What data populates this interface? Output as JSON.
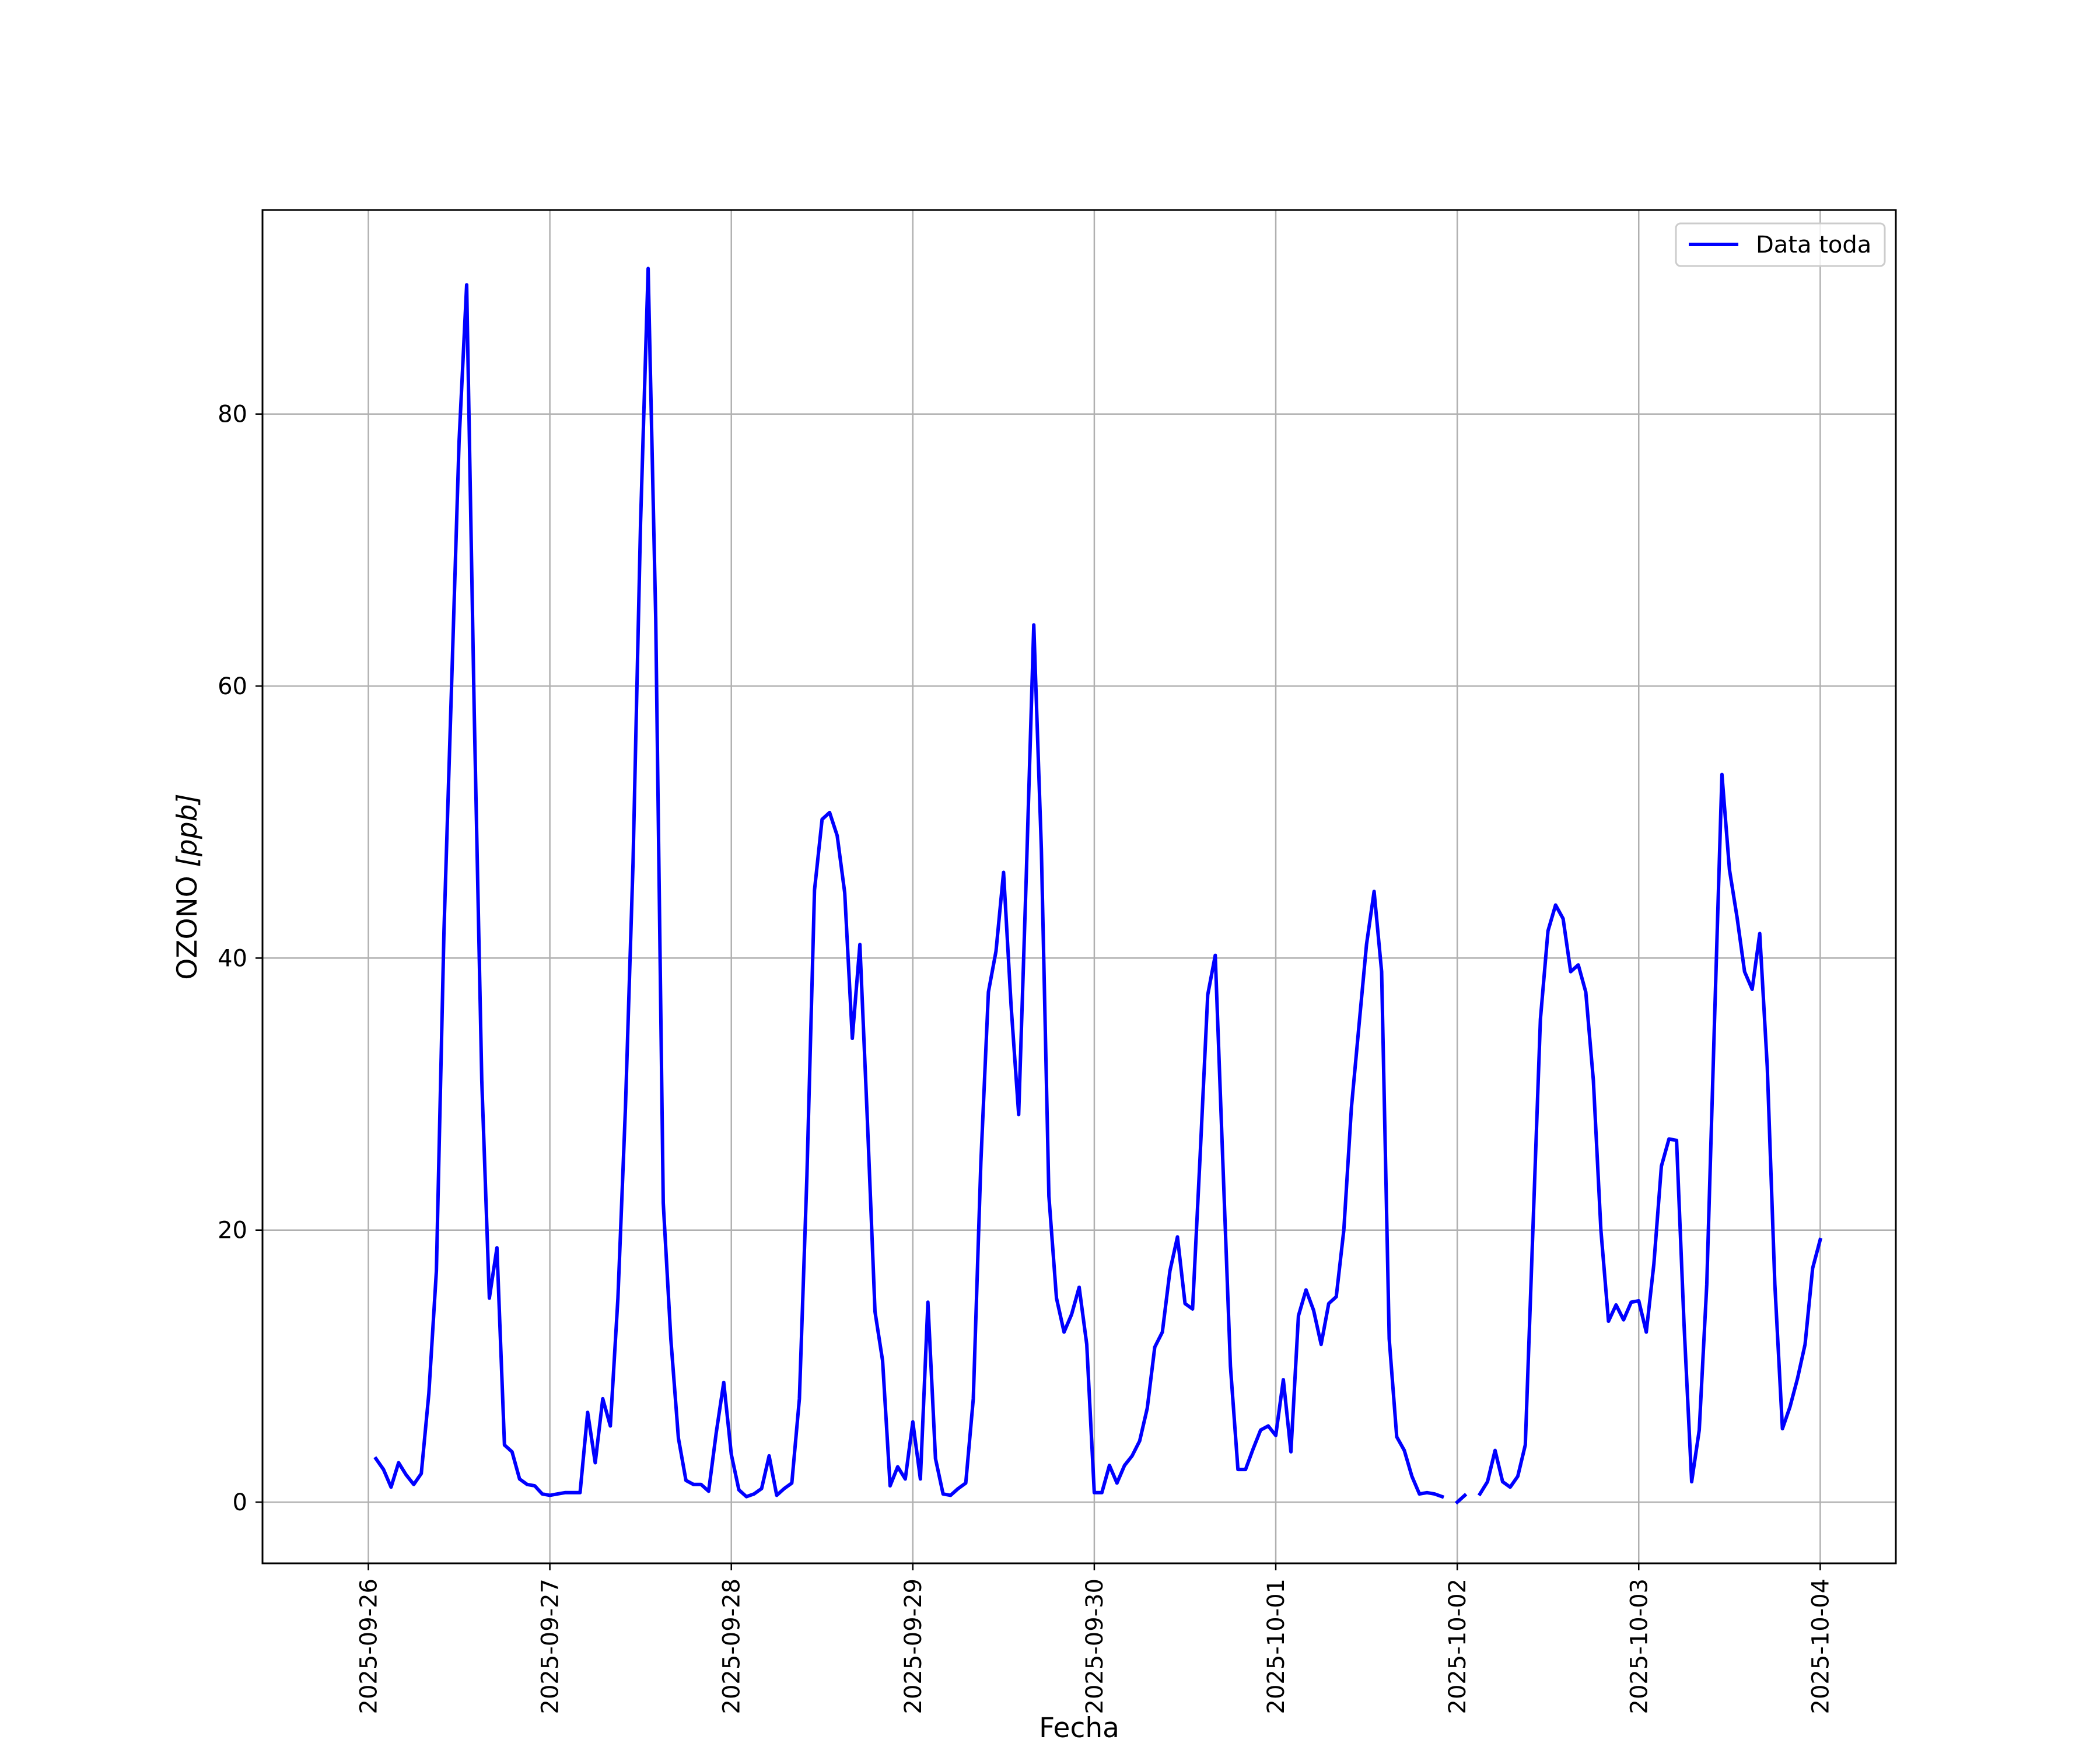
{
  "chart_data": {
    "type": "line",
    "xlabel": "Fecha",
    "ylabel_text": "OZONO ",
    "ylabel_unit": "[ppb]",
    "x_ticks": [
      "2025-09-26",
      "2025-09-27",
      "2025-09-28",
      "2025-09-29",
      "2025-09-30",
      "2025-10-01",
      "2025-10-02",
      "2025-10-03",
      "2025-10-04"
    ],
    "y_ticks": [
      0,
      20,
      40,
      60,
      80
    ],
    "xlim": [
      "2025-09-25T10:00",
      "2025-10-04T10:00"
    ],
    "ylim": [
      -4.5,
      95
    ],
    "grid": true,
    "legend_position": "top-right",
    "colors": {
      "series": "#0000ff",
      "grid": "#b0b0b0"
    },
    "series": [
      {
        "name": "Data toda",
        "start": "2025-09-26T01:00",
        "step_hours": 1,
        "values": [
          3.2,
          2.4,
          1.1,
          2.9,
          2.0,
          1.3,
          2.1,
          8,
          17,
          42,
          60,
          78,
          89.5,
          58,
          31,
          15,
          18.7,
          4.2,
          3.7,
          1.7,
          1.3,
          1.2,
          0.6,
          0.5,
          0.6,
          0.7,
          0.7,
          0.7,
          6.6,
          2.9,
          7.6,
          5.6,
          15,
          29,
          47,
          72,
          90.7,
          65,
          22,
          12,
          4.7,
          1.6,
          1.3,
          1.3,
          0.8,
          5.1,
          8.8,
          3.5,
          0.9,
          0.4,
          0.6,
          1.0,
          3.4,
          0.5,
          1.0,
          1.4,
          7.6,
          24,
          45,
          50.2,
          50.7,
          49,
          44.8,
          34.1,
          41,
          28,
          14,
          10.4,
          1.2,
          2.6,
          1.7,
          5.9,
          1.7,
          14.7,
          3.2,
          0.6,
          0.5,
          1.0,
          1.4,
          7.6,
          25,
          37.5,
          40.5,
          46.3,
          36.5,
          28.5,
          46,
          64.5,
          48,
          22.5,
          15,
          12.5,
          13.8,
          15.8,
          11.6,
          0.7,
          0.7,
          2.7,
          1.4,
          2.7,
          3.4,
          4.5,
          6.9,
          11.4,
          12.5,
          17,
          19.5,
          14.6,
          14.2,
          25.5,
          37.3,
          40.2,
          25,
          10,
          2.4,
          2.4,
          3.9,
          5.3,
          5.6,
          4.9,
          9.0,
          3.7,
          13.7,
          15.6,
          14.1,
          11.6,
          14.6,
          15.1,
          20,
          29,
          35,
          41,
          44.9,
          39,
          12,
          4.8,
          3.8,
          1.9,
          0.6,
          0.7,
          0.6,
          0.4,
          null,
          0.0,
          0.5,
          null,
          0.6,
          1.5,
          3.8,
          1.5,
          1.1,
          1.9,
          4.2,
          20,
          35.5,
          42,
          43.9,
          42.9,
          39,
          39.5,
          37.5,
          31,
          20,
          13.3,
          14.5,
          13.4,
          14.7,
          14.8,
          12.5,
          17.5,
          24.7,
          26.7,
          26.6,
          13,
          1.5,
          5.3,
          16,
          35,
          53.5,
          46.5,
          43,
          39,
          37.7,
          41.8,
          32,
          16,
          5.4,
          7.0,
          9.1,
          11.6,
          17.2,
          19.3
        ]
      }
    ]
  }
}
